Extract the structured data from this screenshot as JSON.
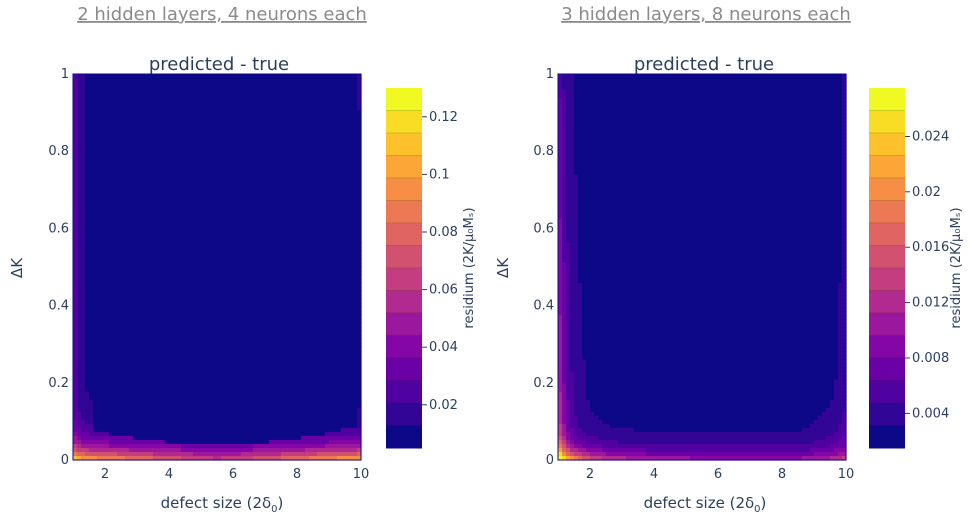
{
  "chart_data": [
    {
      "type": "contour",
      "caption": "2 hidden layers, 4 neurons each",
      "title": "predicted - true",
      "xlabel": "defect size (2δ",
      "xlabel_sub": "0",
      "xlabel_end": ")",
      "ylabel": "ΔK",
      "xlim": [
        1,
        10
      ],
      "ylim": [
        0,
        1
      ],
      "x_ticks": [
        "2",
        "4",
        "6",
        "8",
        "10"
      ],
      "x_tick_values": [
        2,
        4,
        6,
        8,
        10
      ],
      "y_ticks": [
        "0",
        "0.2",
        "0.4",
        "0.6",
        "0.8",
        "1"
      ],
      "y_tick_values": [
        0,
        0.2,
        0.4,
        0.6,
        0.8,
        1
      ],
      "colorbar_label": "residium (2K/μ₀Mₛ)",
      "colorbar_range": [
        0.005,
        0.13
      ],
      "colorbar_ticks": [
        "0.02",
        "0.04",
        "0.06",
        "0.08",
        "0.1",
        "0.12"
      ],
      "colorbar_tick_values": [
        0.02,
        0.04,
        0.06,
        0.08,
        0.1,
        0.12
      ],
      "contour_levels": 16,
      "colorscale": "plasma"
    },
    {
      "type": "contour",
      "caption": "3 hidden layers, 8 neurons each",
      "title": "predicted - true",
      "xlabel": "defect size (2δ",
      "xlabel_sub": "0",
      "xlabel_end": ")",
      "ylabel": "ΔK",
      "xlim": [
        1,
        10
      ],
      "ylim": [
        0,
        1
      ],
      "x_ticks": [
        "2",
        "4",
        "6",
        "8",
        "10"
      ],
      "x_tick_values": [
        2,
        4,
        6,
        8,
        10
      ],
      "y_ticks": [
        "0",
        "0.2",
        "0.4",
        "0.6",
        "0.8",
        "1"
      ],
      "y_tick_values": [
        0,
        0.2,
        0.4,
        0.6,
        0.8,
        1
      ],
      "colorbar_label": "residium (2K/μ₀Mₛ)",
      "colorbar_range": [
        0.0015,
        0.0275
      ],
      "colorbar_ticks": [
        "0.004",
        "0.008",
        "0.012",
        "0.016",
        "0.02",
        "0.024"
      ],
      "colorbar_tick_values": [
        0.004,
        0.008,
        0.012,
        0.016,
        0.02,
        0.024
      ],
      "contour_levels": 16,
      "colorscale": "plasma"
    }
  ]
}
